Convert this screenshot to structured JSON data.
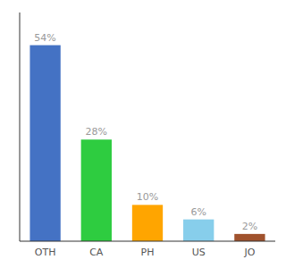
{
  "chart_data": {
    "type": "bar",
    "categories": [
      "OTH",
      "CA",
      "PH",
      "US",
      "JO"
    ],
    "values": [
      54,
      28,
      10,
      6,
      2
    ],
    "value_labels": [
      "54%",
      "28%",
      "10%",
      "6%",
      "2%"
    ],
    "colors": [
      "#4472C4",
      "#2ECC40",
      "#FFA500",
      "#87CEEB",
      "#A0522D"
    ],
    "ylim": [
      0,
      63
    ],
    "data_labels": true,
    "tick_labels": "x",
    "grid": false
  }
}
